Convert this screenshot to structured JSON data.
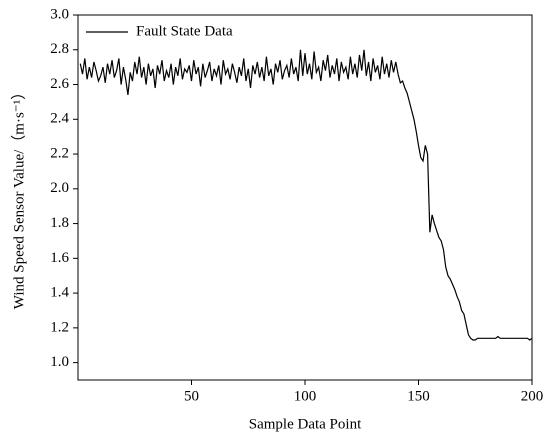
{
  "chart_data": {
    "type": "line",
    "xlabel": "Sample Data Point",
    "ylabel": "Wind Speed Sensor Value/（m·s⁻¹）",
    "xlim": [
      0,
      200
    ],
    "xticks": [
      50,
      100,
      150,
      200
    ],
    "ylim": [
      0.9,
      3.0
    ],
    "yticks": [
      {
        "value": 1,
        "label": "1.0"
      },
      1.2,
      1.4,
      1.6,
      1.8,
      {
        "value": 2,
        "label": "2.0"
      },
      2.2,
      2.4,
      2.6,
      2.8,
      {
        "value": 3,
        "label": "3.0"
      }
    ],
    "legend": "upper left",
    "x": [
      1,
      2,
      3,
      4,
      5,
      6,
      7,
      8,
      9,
      10,
      11,
      12,
      13,
      14,
      15,
      16,
      17,
      18,
      19,
      20,
      21,
      22,
      23,
      24,
      25,
      26,
      27,
      28,
      29,
      30,
      31,
      32,
      33,
      34,
      35,
      36,
      37,
      38,
      39,
      40,
      41,
      42,
      43,
      44,
      45,
      46,
      47,
      48,
      49,
      50,
      51,
      52,
      53,
      54,
      55,
      56,
      57,
      58,
      59,
      60,
      61,
      62,
      63,
      64,
      65,
      66,
      67,
      68,
      69,
      70,
      71,
      72,
      73,
      74,
      75,
      76,
      77,
      78,
      79,
      80,
      81,
      82,
      83,
      84,
      85,
      86,
      87,
      88,
      89,
      90,
      91,
      92,
      93,
      94,
      95,
      96,
      97,
      98,
      99,
      100,
      101,
      102,
      103,
      104,
      105,
      106,
      107,
      108,
      109,
      110,
      111,
      112,
      113,
      114,
      115,
      116,
      117,
      118,
      119,
      120,
      121,
      122,
      123,
      124,
      125,
      126,
      127,
      128,
      129,
      130,
      131,
      132,
      133,
      134,
      135,
      136,
      137,
      138,
      139,
      140,
      141,
      142,
      143,
      144,
      145,
      146,
      147,
      148,
      149,
      150,
      151,
      152,
      153,
      154,
      155,
      156,
      157,
      158,
      159,
      160,
      161,
      162,
      163,
      164,
      165,
      166,
      167,
      168,
      169,
      170,
      171,
      172,
      173,
      174,
      175,
      176,
      177,
      178,
      179,
      180,
      181,
      182,
      183,
      184,
      185,
      186,
      187,
      188,
      189,
      190,
      191,
      192,
      193,
      194,
      195,
      196,
      197,
      198,
      199,
      200
    ],
    "series": [
      {
        "name": "Fault State Data",
        "color": "#000000",
        "values": [
          2.72,
          2.66,
          2.75,
          2.63,
          2.7,
          2.64,
          2.73,
          2.68,
          2.62,
          2.65,
          2.7,
          2.61,
          2.72,
          2.66,
          2.74,
          2.64,
          2.68,
          2.75,
          2.6,
          2.7,
          2.63,
          2.54,
          2.67,
          2.62,
          2.73,
          2.66,
          2.76,
          2.64,
          2.7,
          2.6,
          2.72,
          2.65,
          2.69,
          2.58,
          2.71,
          2.66,
          2.74,
          2.62,
          2.68,
          2.64,
          2.72,
          2.6,
          2.7,
          2.65,
          2.75,
          2.63,
          2.69,
          2.67,
          2.71,
          2.62,
          2.74,
          2.66,
          2.7,
          2.59,
          2.72,
          2.64,
          2.68,
          2.73,
          2.62,
          2.69,
          2.65,
          2.71,
          2.6,
          2.74,
          2.66,
          2.69,
          2.63,
          2.72,
          2.67,
          2.61,
          2.7,
          2.65,
          2.75,
          2.62,
          2.69,
          2.58,
          2.71,
          2.66,
          2.73,
          2.64,
          2.7,
          2.62,
          2.76,
          2.65,
          2.69,
          2.6,
          2.72,
          2.67,
          2.74,
          2.63,
          2.68,
          2.71,
          2.64,
          2.75,
          2.66,
          2.7,
          2.62,
          2.8,
          2.65,
          2.78,
          2.66,
          2.72,
          2.63,
          2.79,
          2.67,
          2.7,
          2.62,
          2.74,
          2.68,
          2.77,
          2.64,
          2.71,
          2.66,
          2.75,
          2.62,
          2.73,
          2.67,
          2.7,
          2.63,
          2.76,
          2.66,
          2.72,
          2.64,
          2.77,
          2.68,
          2.8,
          2.65,
          2.73,
          2.62,
          2.75,
          2.67,
          2.71,
          2.63,
          2.76,
          2.66,
          2.72,
          2.64,
          2.74,
          2.67,
          2.73,
          2.66,
          2.61,
          2.62,
          2.58,
          2.55,
          2.5,
          2.45,
          2.4,
          2.33,
          2.25,
          2.18,
          2.16,
          2.25,
          2.2,
          1.75,
          1.85,
          1.8,
          1.76,
          1.72,
          1.7,
          1.65,
          1.55,
          1.5,
          1.48,
          1.45,
          1.42,
          1.38,
          1.35,
          1.3,
          1.28,
          1.22,
          1.16,
          1.14,
          1.13,
          1.13,
          1.14,
          1.14,
          1.14,
          1.14,
          1.14,
          1.14,
          1.14,
          1.14,
          1.14,
          1.15,
          1.14,
          1.14,
          1.14,
          1.14,
          1.14,
          1.14,
          1.14,
          1.14,
          1.14,
          1.14,
          1.14,
          1.14,
          1.14,
          1.13,
          1.14
        ]
      }
    ]
  }
}
